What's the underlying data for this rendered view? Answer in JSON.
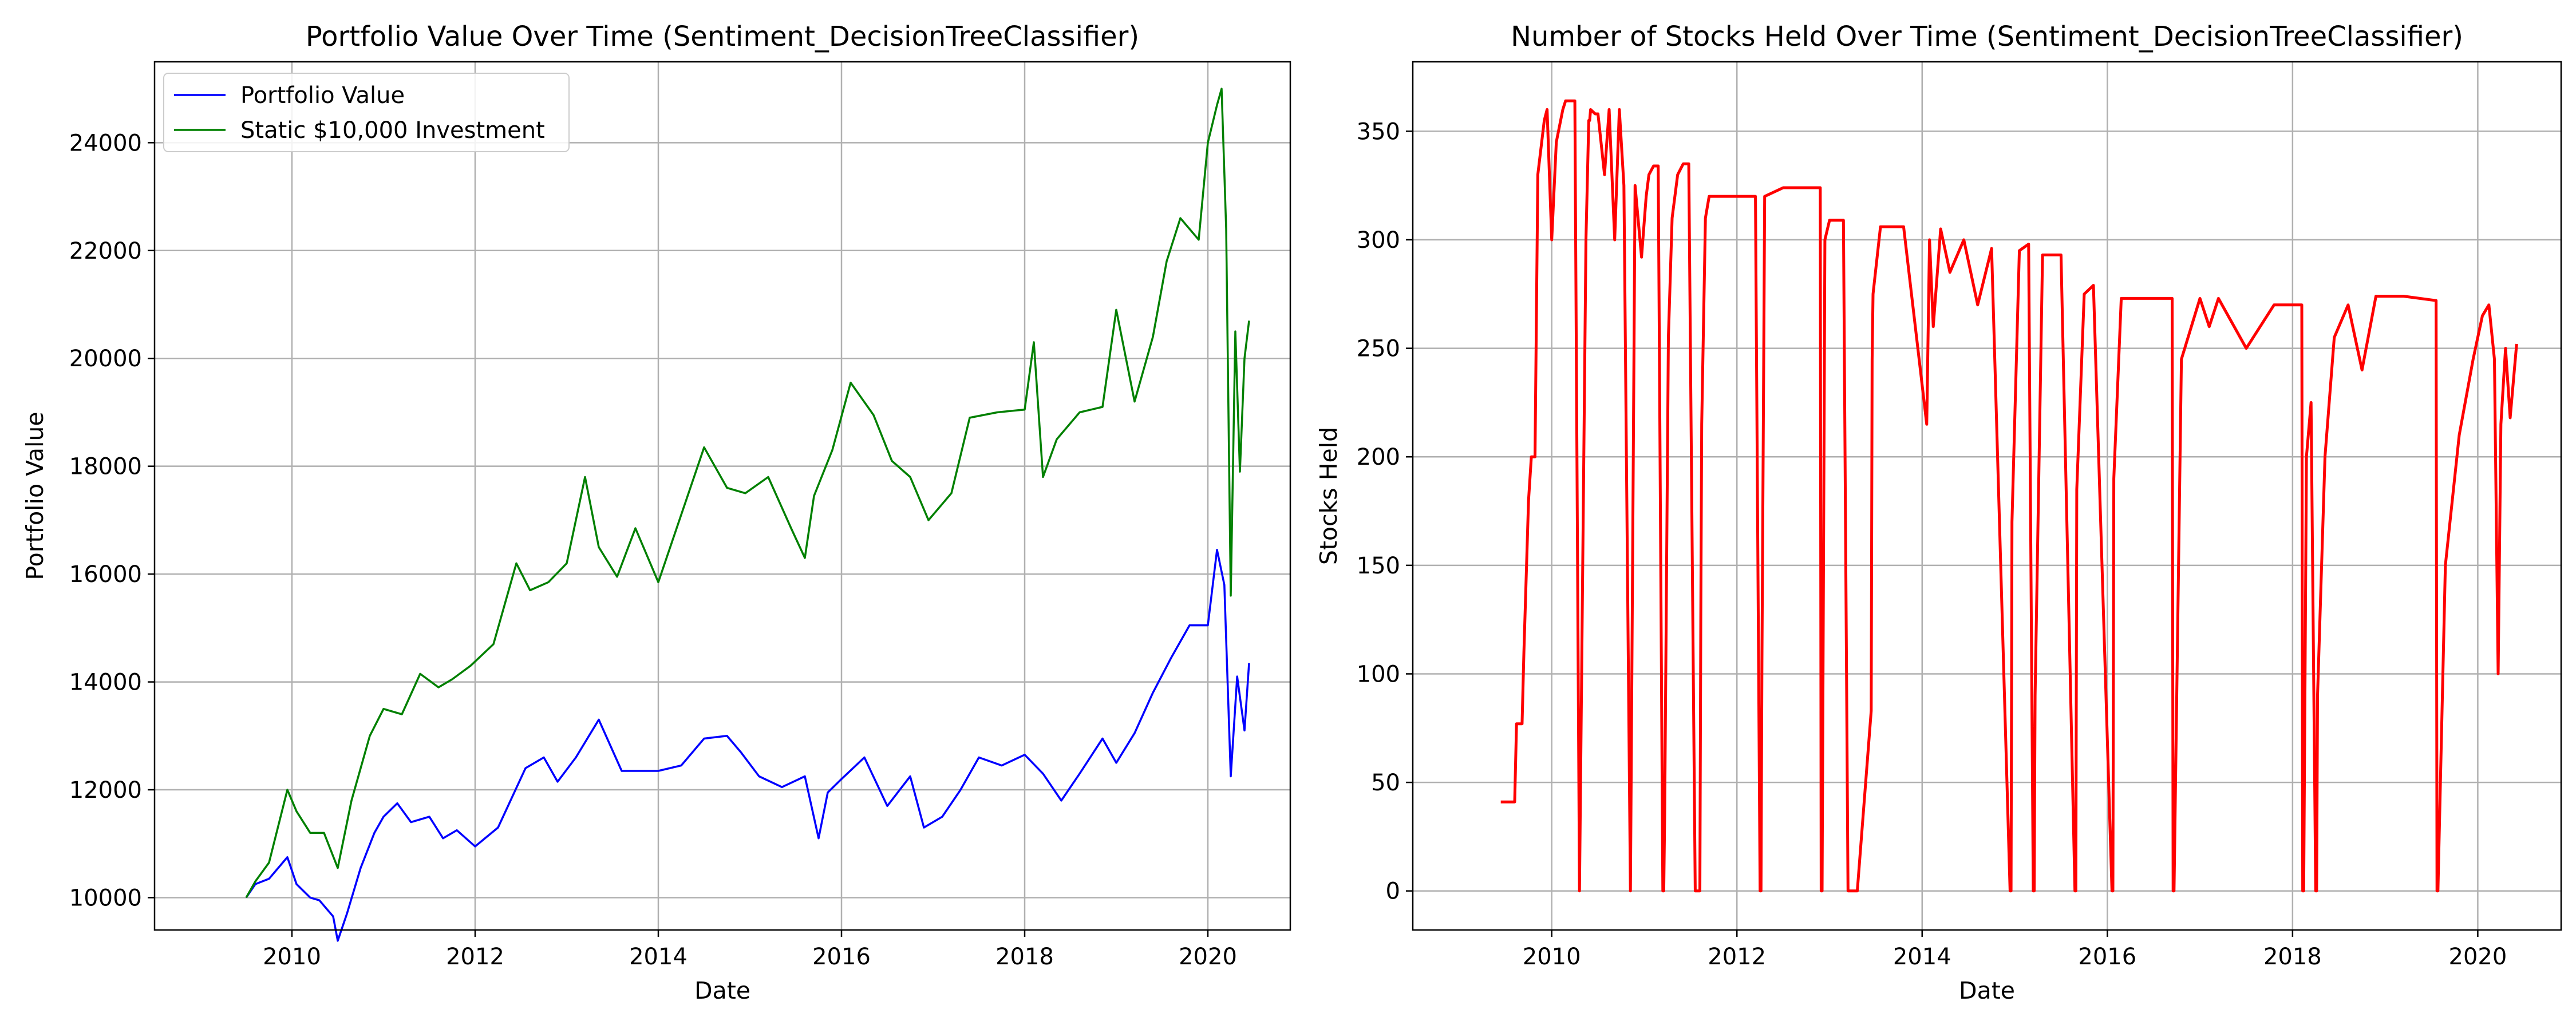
{
  "colors": {
    "portfolio": "#0000ff",
    "static": "#008000",
    "stocks": "#ff0000",
    "grid": "#b0b0b0",
    "axes": "#000000",
    "background": "#ffffff"
  },
  "chart_data": [
    {
      "type": "line",
      "title": "Portfolio Value Over Time (Sentiment_DecisionTreeClassifier)",
      "xlabel": "Date",
      "ylabel": "Portfolio Value",
      "xlim": [
        2008.5,
        2020.9
      ],
      "ylim": [
        9400,
        25500
      ],
      "xticks": [
        2010,
        2012,
        2014,
        2016,
        2018,
        2020
      ],
      "yticks": [
        10000,
        12000,
        14000,
        16000,
        18000,
        20000,
        22000,
        24000
      ],
      "grid": true,
      "legend": "top-left",
      "series": [
        {
          "name": "Portfolio Value",
          "color": "#0000ff",
          "x": [
            2009.5,
            2009.6,
            2009.75,
            2009.95,
            2010.05,
            2010.2,
            2010.3,
            2010.45,
            2010.5,
            2010.6,
            2010.75,
            2010.9,
            2011.0,
            2011.15,
            2011.3,
            2011.5,
            2011.65,
            2011.8,
            2012.0,
            2012.25,
            2012.55,
            2012.75,
            2012.9,
            2013.1,
            2013.35,
            2013.6,
            2013.8,
            2014.0,
            2014.25,
            2014.5,
            2014.75,
            2014.9,
            2015.1,
            2015.35,
            2015.6,
            2015.75,
            2015.85,
            2016.0,
            2016.25,
            2016.5,
            2016.75,
            2016.9,
            2017.1,
            2017.3,
            2017.5,
            2017.75,
            2018.0,
            2018.2,
            2018.4,
            2018.6,
            2018.85,
            2019.0,
            2019.2,
            2019.4,
            2019.6,
            2019.8,
            2020.0,
            2020.1,
            2020.18,
            2020.25,
            2020.32,
            2020.4,
            2020.45
          ],
          "values": [
            10000,
            10250,
            10350,
            10750,
            10250,
            10000,
            9950,
            9650,
            9200,
            9700,
            10550,
            11200,
            11500,
            11750,
            11400,
            11500,
            11100,
            11250,
            10950,
            11300,
            12400,
            12600,
            12150,
            12600,
            13300,
            12350,
            12350,
            12350,
            12450,
            12950,
            13000,
            12700,
            12250,
            12050,
            12250,
            11100,
            11950,
            12200,
            12600,
            11700,
            12250,
            11300,
            11500,
            12000,
            12600,
            12450,
            12650,
            12300,
            11800,
            12300,
            12950,
            12500,
            13050,
            13800,
            14450,
            15050,
            15050,
            16450,
            15800,
            12250,
            14100,
            13100,
            14350
          ]
        },
        {
          "name": "Static $10,000 Investment",
          "color": "#008000",
          "x": [
            2009.5,
            2009.6,
            2009.75,
            2009.95,
            2010.05,
            2010.2,
            2010.35,
            2010.5,
            2010.65,
            2010.85,
            2011.0,
            2011.2,
            2011.4,
            2011.6,
            2011.75,
            2011.95,
            2012.2,
            2012.45,
            2012.6,
            2012.8,
            2013.0,
            2013.2,
            2013.35,
            2013.55,
            2013.75,
            2014.0,
            2014.3,
            2014.5,
            2014.75,
            2014.95,
            2015.2,
            2015.45,
            2015.6,
            2015.7,
            2015.9,
            2016.1,
            2016.35,
            2016.55,
            2016.75,
            2016.95,
            2017.2,
            2017.4,
            2017.7,
            2018.0,
            2018.1,
            2018.2,
            2018.35,
            2018.6,
            2018.85,
            2019.0,
            2019.2,
            2019.4,
            2019.55,
            2019.7,
            2019.9,
            2020.0,
            2020.1,
            2020.15,
            2020.2,
            2020.25,
            2020.3,
            2020.35,
            2020.4,
            2020.45
          ],
          "values": [
            10000,
            10300,
            10650,
            12000,
            11600,
            11200,
            11200,
            10550,
            11800,
            13000,
            13500,
            13400,
            14150,
            13900,
            14050,
            14300,
            14700,
            16200,
            15700,
            15850,
            16200,
            17800,
            16500,
            15950,
            16850,
            15850,
            17350,
            18350,
            17600,
            17500,
            17800,
            16850,
            16300,
            17450,
            18300,
            19550,
            18950,
            18100,
            17800,
            17000,
            17500,
            18900,
            19000,
            19050,
            20300,
            17800,
            18500,
            19000,
            19100,
            20900,
            19200,
            20400,
            21800,
            22600,
            22200,
            24000,
            24700,
            25000,
            22400,
            15600,
            20500,
            17900,
            20000,
            20700
          ]
        }
      ]
    },
    {
      "type": "line",
      "title": "Number of Stocks Held Over Time (Sentiment_DecisionTreeClassifier)",
      "xlabel": "Date",
      "ylabel": "Stocks Held",
      "xlim": [
        2008.5,
        2020.9
      ],
      "ylim": [
        -18,
        382
      ],
      "xticks": [
        2010,
        2012,
        2014,
        2016,
        2018,
        2020
      ],
      "yticks": [
        0,
        50,
        100,
        150,
        200,
        250,
        300,
        350
      ],
      "grid": true,
      "series": [
        {
          "name": "",
          "color": "#ff0000",
          "x": [
            2009.45,
            2009.6,
            2009.62,
            2009.68,
            2009.7,
            2009.75,
            2009.78,
            2009.82,
            2009.85,
            2009.92,
            2009.95,
            2010.0,
            2010.05,
            2010.12,
            2010.15,
            2010.25,
            2010.3,
            2010.37,
            2010.4,
            2010.41,
            2010.42,
            2010.47,
            2010.5,
            2010.57,
            2010.62,
            2010.68,
            2010.73,
            2010.78,
            2010.85,
            2010.9,
            2010.97,
            2011.02,
            2011.05,
            2011.1,
            2011.15,
            2011.2,
            2011.21,
            2011.22,
            2011.26,
            2011.3,
            2011.36,
            2011.42,
            2011.48,
            2011.55,
            2011.6,
            2011.61,
            2011.62,
            2011.66,
            2011.7,
            2011.74,
            2011.78,
            2011.85,
            2012.0,
            2012.2,
            2012.25,
            2012.26,
            2012.27,
            2012.3,
            2012.5,
            2012.9,
            2012.91,
            2012.92,
            2012.95,
            2013.0,
            2013.15,
            2013.2,
            2013.3,
            2013.45,
            2013.46,
            2013.47,
            2013.55,
            2013.65,
            2013.8,
            2014.05,
            2014.08,
            2014.12,
            2014.2,
            2014.3,
            2014.45,
            2014.6,
            2014.75,
            2014.95,
            2014.96,
            2014.97,
            2015.05,
            2015.15,
            2015.2,
            2015.21,
            2015.22,
            2015.3,
            2015.5,
            2015.65,
            2015.66,
            2015.67,
            2015.75,
            2015.85,
            2016.05,
            2016.06,
            2016.07,
            2016.15,
            2016.35,
            2016.7,
            2016.71,
            2016.72,
            2016.8,
            2017.0,
            2017.1,
            2017.2,
            2017.5,
            2017.8,
            2018.1,
            2018.11,
            2018.12,
            2018.15,
            2018.2,
            2018.25,
            2018.26,
            2018.27,
            2018.35,
            2018.45,
            2018.6,
            2018.75,
            2018.9,
            2019.2,
            2019.55,
            2019.56,
            2019.57,
            2019.65,
            2019.8,
            2019.95,
            2020.05,
            2020.12,
            2020.18,
            2020.22,
            2020.25,
            2020.3,
            2020.35,
            2020.42
          ],
          "values": [
            41,
            41,
            77,
            77,
            110,
            180,
            200,
            200,
            330,
            355,
            360,
            300,
            345,
            360,
            364,
            364,
            0,
            300,
            355,
            355,
            360,
            358,
            358,
            330,
            360,
            300,
            360,
            325,
            0,
            325,
            292,
            320,
            330,
            334,
            334,
            0,
            0,
            35,
            255,
            310,
            330,
            335,
            335,
            0,
            0,
            125,
            215,
            310,
            320,
            320,
            320,
            320,
            320,
            320,
            0,
            0,
            105,
            320,
            324,
            324,
            0,
            0,
            300,
            309,
            309,
            0,
            0,
            83,
            245,
            275,
            306,
            306,
            306,
            215,
            300,
            260,
            305,
            285,
            300,
            270,
            296,
            0,
            0,
            170,
            295,
            298,
            0,
            0,
            90,
            293,
            293,
            0,
            0,
            185,
            275,
            279,
            0,
            0,
            190,
            273,
            273,
            273,
            0,
            0,
            245,
            273,
            260,
            273,
            250,
            270,
            270,
            0,
            0,
            200,
            225,
            0,
            0,
            90,
            200,
            255,
            270,
            240,
            274,
            274,
            272,
            0,
            0,
            150,
            210,
            245,
            265,
            270,
            245,
            100,
            215,
            250,
            218,
            252
          ]
        }
      ]
    }
  ]
}
